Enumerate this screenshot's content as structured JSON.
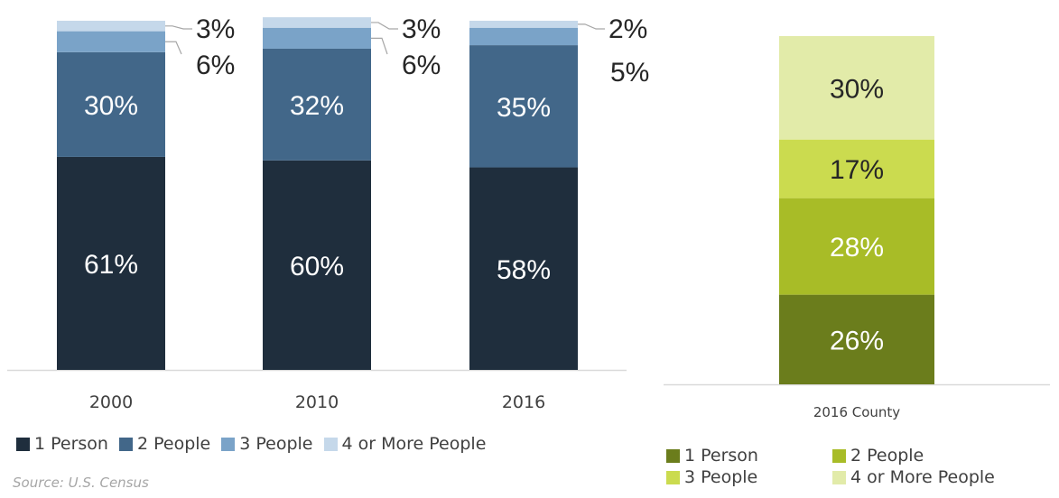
{
  "chart_data": [
    {
      "type": "bar",
      "stacked": true,
      "categories": [
        "2000",
        "2010",
        "2016"
      ],
      "series": [
        {
          "name": "1 Person",
          "values": [
            61,
            60,
            58
          ],
          "color": "#1f2e3d"
        },
        {
          "name": "2 People",
          "values": [
            30,
            32,
            35
          ],
          "color": "#426789"
        },
        {
          "name": "3 People",
          "values": [
            6,
            6,
            5
          ],
          "color": "#7aa3c8"
        },
        {
          "name": "4 or More People",
          "values": [
            3,
            3,
            2
          ],
          "color": "#c5d8ea"
        }
      ],
      "data_labels": [
        [
          "61%",
          "30%",
          "6%",
          "3%"
        ],
        [
          "60%",
          "32%",
          "6%",
          "3%"
        ],
        [
          "58%",
          "35%",
          "5%",
          "2%"
        ]
      ],
      "ylim": [
        0,
        100
      ],
      "legend_position": "bottom"
    },
    {
      "type": "bar",
      "stacked": true,
      "categories": [
        "2016 County"
      ],
      "series": [
        {
          "name": "1 Person",
          "values": [
            26
          ],
          "color": "#6b7d1c"
        },
        {
          "name": "2 People",
          "values": [
            28
          ],
          "color": "#a8bc27"
        },
        {
          "name": "3 People",
          "values": [
            17
          ],
          "color": "#cbdb4f"
        },
        {
          "name": "4 or More People",
          "values": [
            30
          ],
          "color": "#e2eba9"
        }
      ],
      "data_labels": [
        [
          "26%",
          "28%",
          "17%",
          "30%"
        ]
      ],
      "ylim": [
        0,
        101
      ],
      "legend_position": "bottom"
    }
  ],
  "source": "Source: U.S. Census"
}
